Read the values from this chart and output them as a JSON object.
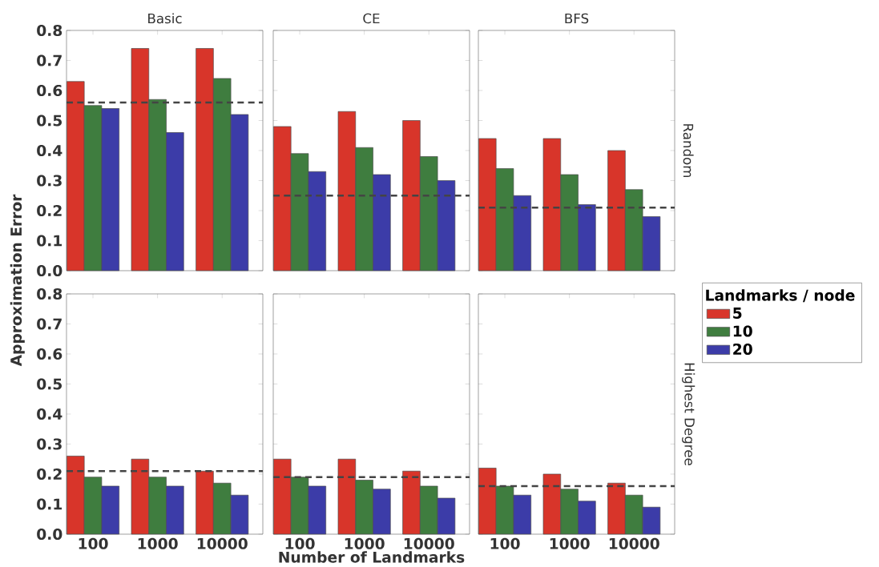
{
  "chart_data": [
    {
      "type": "bar",
      "title": "Basic",
      "ylabel": "Approximation Error",
      "categories": [
        "100",
        "1000",
        "10000"
      ],
      "series": [
        {
          "color": "#d8352a",
          "values": [
            0.63,
            0.74,
            0.74
          ]
        },
        {
          "color": "#3f7d3f",
          "values": [
            0.55,
            0.57,
            0.64
          ]
        },
        {
          "color": "#3c3ca8",
          "values": [
            0.54,
            0.46,
            0.52
          ]
        }
      ],
      "ylim": [
        0,
        0.8
      ],
      "yticks": [
        {
          "value": 0,
          "label": "0.0"
        },
        0.1,
        0.2,
        0.3,
        0.4,
        0.5,
        0.6,
        0.7,
        0.8
      ],
      "tick_labels": "y",
      "ref_lines": [
        {
          "axis": "y",
          "value": 0.56,
          "line_style": "dashed",
          "color": "#444444"
        }
      ]
    },
    {
      "type": "bar",
      "title": "CE",
      "categories": [
        "100",
        "1000",
        "10000"
      ],
      "series": [
        {
          "color": "#d8352a",
          "values": [
            0.48,
            0.53,
            0.5
          ]
        },
        {
          "color": "#3f7d3f",
          "values": [
            0.39,
            0.41,
            0.38
          ]
        },
        {
          "color": "#3c3ca8",
          "values": [
            0.33,
            0.32,
            0.3
          ]
        }
      ],
      "ylim": [
        0,
        0.8
      ],
      "yticks": [
        0,
        0.1,
        0.2,
        0.3,
        0.4,
        0.5,
        0.6,
        0.7,
        0.8
      ],
      "tick_labels": false,
      "ref_lines": [
        {
          "axis": "y",
          "value": 0.25,
          "line_style": "dashed",
          "color": "#444444"
        }
      ]
    },
    {
      "type": "bar",
      "title": "BFS",
      "categories": [
        "100",
        "1000",
        "10000"
      ],
      "series": [
        {
          "name": "5",
          "color": "#d8352a",
          "values": [
            0.44,
            0.44,
            0.4
          ]
        },
        {
          "name": "10",
          "color": "#3f7d3f",
          "values": [
            0.34,
            0.32,
            0.27
          ]
        },
        {
          "name": "20",
          "color": "#3c3ca8",
          "values": [
            0.25,
            0.22,
            0.18
          ]
        }
      ],
      "ylim": [
        0,
        0.8
      ],
      "yticks": [
        0,
        0.1,
        0.2,
        0.3,
        0.4,
        0.5,
        0.6,
        0.7,
        0.8
      ],
      "tick_labels": false,
      "legend": "right",
      "legend_title": "Landmarks / node",
      "annotations": [
        "Random"
      ],
      "ref_lines": [
        {
          "axis": "y",
          "value": 0.21,
          "line_style": "dashed",
          "color": "#444444"
        }
      ]
    },
    {
      "type": "bar",
      "categories": [
        "100",
        "1000",
        "10000"
      ],
      "series": [
        {
          "color": "#d8352a",
          "values": [
            0.26,
            0.25,
            0.21
          ]
        },
        {
          "color": "#3f7d3f",
          "values": [
            0.19,
            0.19,
            0.17
          ]
        },
        {
          "color": "#3c3ca8",
          "values": [
            0.16,
            0.16,
            0.13
          ]
        }
      ],
      "ylim": [
        0,
        0.8
      ],
      "yticks": [
        {
          "value": 0,
          "label": "0.0"
        },
        0.1,
        0.2,
        0.3,
        0.4,
        0.5,
        0.6,
        0.7,
        0.8
      ],
      "ref_lines": [
        {
          "axis": "y",
          "value": 0.21,
          "line_style": "dashed",
          "color": "#444444"
        }
      ]
    },
    {
      "type": "bar",
      "xlabel": "Number of Landmarks",
      "categories": [
        "100",
        "1000",
        "10000"
      ],
      "series": [
        {
          "color": "#d8352a",
          "values": [
            0.25,
            0.25,
            0.21
          ]
        },
        {
          "color": "#3f7d3f",
          "values": [
            0.19,
            0.18,
            0.16
          ]
        },
        {
          "color": "#3c3ca8",
          "values": [
            0.16,
            0.15,
            0.12
          ]
        }
      ],
      "ylim": [
        0,
        0.8
      ],
      "yticks": [
        0,
        0.1,
        0.2,
        0.3,
        0.4,
        0.5,
        0.6,
        0.7,
        0.8
      ],
      "tick_labels": "x",
      "ref_lines": [
        {
          "axis": "y",
          "value": 0.19,
          "line_style": "dashed",
          "color": "#444444"
        }
      ]
    },
    {
      "type": "bar",
      "categories": [
        "100",
        "1000",
        "10000"
      ],
      "series": [
        {
          "color": "#d8352a",
          "values": [
            0.22,
            0.2,
            0.17
          ]
        },
        {
          "color": "#3f7d3f",
          "values": [
            0.16,
            0.15,
            0.13
          ]
        },
        {
          "color": "#3c3ca8",
          "values": [
            0.13,
            0.11,
            0.09
          ]
        }
      ],
      "ylim": [
        0,
        0.8
      ],
      "yticks": [
        0,
        0.1,
        0.2,
        0.3,
        0.4,
        0.5,
        0.6,
        0.7,
        0.8
      ],
      "tick_labels": "x",
      "annotations": [
        "Highest Degree"
      ],
      "ref_lines": [
        {
          "axis": "y",
          "value": 0.16,
          "line_style": "dashed",
          "color": "#444444"
        }
      ]
    }
  ]
}
